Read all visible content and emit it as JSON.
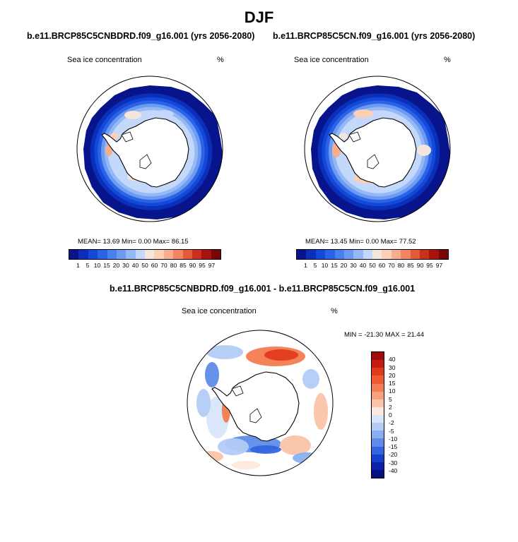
{
  "figure": {
    "season": "DJF",
    "left_panel": {
      "title": "b.e11.BRCP85C5CNBDRD.f09_g16.001 (yrs 2056-2080)",
      "variable": "Sea ice concentration",
      "units": "%",
      "stats": "MEAN= 13.69  Min=   0.00  Max=  86.15"
    },
    "right_panel": {
      "title": "b.e11.BRCP85C5CN.f09_g16.001 (yrs 2056-2080)",
      "variable": "Sea ice concentration",
      "units": "%",
      "stats": "MEAN= 13.45  Min=   0.00  Max=  77.52"
    },
    "diff_panel": {
      "title": "b.e11.BRCP85C5CNBDRD.f09_g16.001 - b.e11.BRCP85C5CN.f09_g16.001",
      "variable": "Sea ice concentration",
      "units": "%",
      "stats": "MIN = -21.30 MAX =  21.44"
    }
  },
  "chart_data": [
    {
      "type": "heatmap",
      "projection": "south-polar-stereographic",
      "title": "b.e11.BRCP85C5CNBDRD.f09_g16.001 (yrs 2056-2080)",
      "variable": "Sea ice concentration",
      "units": "%",
      "mean": 13.69,
      "min": 0.0,
      "max": 86.15,
      "colorbar_levels": [
        1,
        5,
        10,
        15,
        20,
        30,
        40,
        50,
        60,
        70,
        80,
        85,
        90,
        95,
        97
      ],
      "colorbar_tick_labels": [
        "1",
        "5",
        "10",
        "15",
        "20",
        "30",
        "40",
        "50",
        "60",
        "70",
        "80",
        "85",
        "90",
        "95",
        "97"
      ]
    },
    {
      "type": "heatmap",
      "projection": "south-polar-stereographic",
      "title": "b.e11.BRCP85C5CN.f09_g16.001 (yrs 2056-2080)",
      "variable": "Sea ice concentration",
      "units": "%",
      "mean": 13.45,
      "min": 0.0,
      "max": 77.52,
      "colorbar_levels": [
        1,
        5,
        10,
        15,
        20,
        30,
        40,
        50,
        60,
        70,
        80,
        85,
        90,
        95,
        97
      ],
      "colorbar_tick_labels": [
        "1",
        "5",
        "10",
        "15",
        "20",
        "30",
        "40",
        "50",
        "60",
        "70",
        "80",
        "85",
        "90",
        "95",
        "97"
      ]
    },
    {
      "type": "heatmap",
      "projection": "south-polar-stereographic",
      "title": "b.e11.BRCP85C5CNBDRD.f09_g16.001 - b.e11.BRCP85C5CN.f09_g16.001",
      "variable": "Sea ice concentration",
      "units": "%",
      "min": -21.3,
      "max": 21.44,
      "colorbar_levels": [
        40,
        30,
        20,
        15,
        10,
        5,
        2,
        0,
        -2,
        -5,
        -10,
        -15,
        -20,
        -30,
        -40
      ],
      "colorbar_tick_labels": [
        "40",
        "30",
        "20",
        "15",
        "10",
        "5",
        "2",
        "0",
        "-2",
        "-5",
        "-10",
        "-15",
        "-20",
        "-30",
        "-40"
      ]
    }
  ],
  "colors": {
    "abs_scale": [
      "#08148c",
      "#0a2fb8",
      "#1448d8",
      "#2a63e6",
      "#4a80ee",
      "#6d9bf2",
      "#95b8f6",
      "#c4d8fb",
      "#f5e6dc",
      "#fbd0b7",
      "#f8ae8d",
      "#f28664",
      "#e65a3c",
      "#cc2f1d",
      "#a8130d",
      "#780606"
    ],
    "diff_scale": [
      "#a00c0c",
      "#c41b12",
      "#e03a1c",
      "#f05a30",
      "#f47c50",
      "#f7a07c",
      "#fac4a8",
      "#fde8dc",
      "#d8e6fb",
      "#b3ccf7",
      "#8aaff1",
      "#5f8ceb",
      "#3465e0",
      "#1440cc",
      "#0a22a8",
      "#061080"
    ],
    "land": "#ffffff",
    "outline": "#000000"
  }
}
